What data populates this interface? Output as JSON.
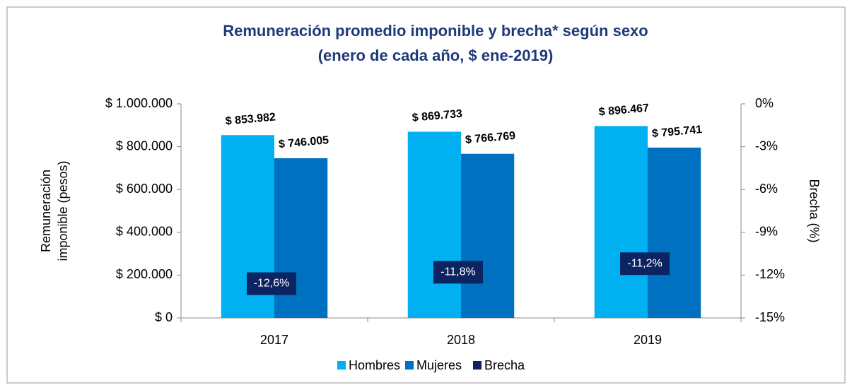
{
  "chart_data": {
    "type": "bar",
    "title": "Remuneración promedio imponible y brecha* según sexo",
    "subtitle": "(enero de cada año, $ ene-2019)",
    "ylabel": [
      "Remuneración",
      "imponible (pesos)"
    ],
    "y2label": "Brecha (%)",
    "categories": [
      "2017",
      "2018",
      "2019"
    ],
    "series": [
      {
        "name": "Hombres",
        "color": "#00b0f0",
        "values": [
          853982,
          869733,
          896467
        ],
        "value_labels": [
          "$ 853.982",
          "$ 869.733",
          "$ 896.467"
        ]
      },
      {
        "name": "Mujeres",
        "color": "#0070c0",
        "values": [
          746005,
          766769,
          795741
        ],
        "value_labels": [
          "$ 746.005",
          "$ 766.769",
          "$ 795.741"
        ]
      },
      {
        "name": "Brecha",
        "color": "#0c2461",
        "axis": "y2",
        "values": [
          -12.6,
          -11.8,
          -11.2
        ],
        "value_labels": [
          "-12,6%",
          "-11,8%",
          "-11,2%"
        ]
      }
    ],
    "ylim": [
      0,
      1000000
    ],
    "yticks": [
      {
        "value": 0,
        "label": "$ 0"
      },
      {
        "value": 200000,
        "label": "$ 200.000"
      },
      {
        "value": 400000,
        "label": "$ 400.000"
      },
      {
        "value": 600000,
        "label": "$ 600.000"
      },
      {
        "value": 800000,
        "label": "$ 800.000"
      },
      {
        "value": 1000000,
        "label": "$ 1.000.000"
      }
    ],
    "y2lim": [
      -15,
      0
    ],
    "y2ticks": [
      {
        "value": -15,
        "label": "-15%"
      },
      {
        "value": -12,
        "label": "-12%"
      },
      {
        "value": -9,
        "label": "-9%"
      },
      {
        "value": -6,
        "label": "-6%"
      },
      {
        "value": -3,
        "label": "-3%"
      },
      {
        "value": 0,
        "label": "0%"
      }
    ],
    "grid": false,
    "legend": "bottom"
  }
}
